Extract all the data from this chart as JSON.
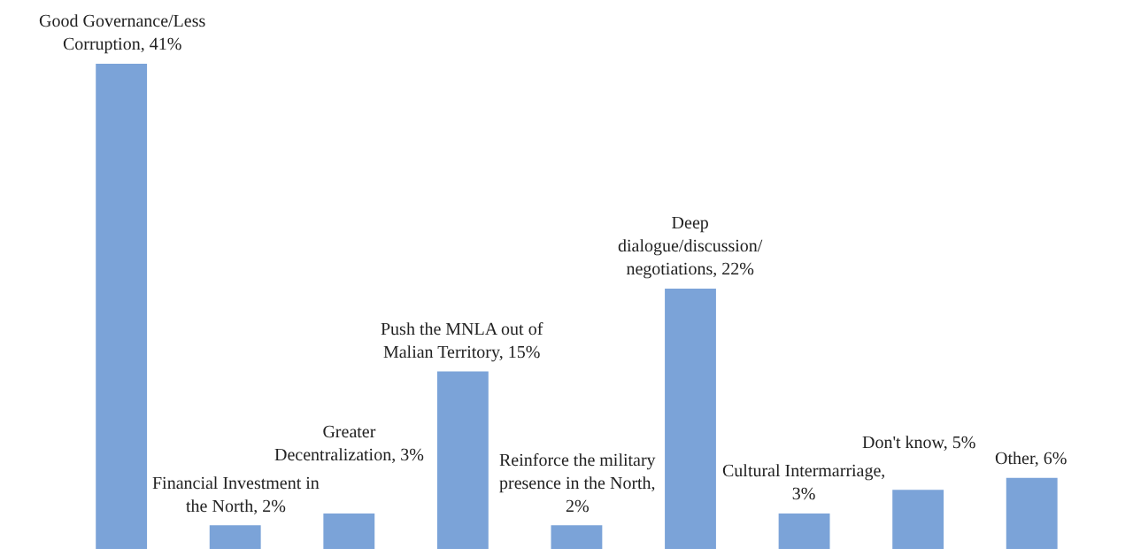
{
  "chart_data": {
    "type": "bar",
    "categories": [
      null,
      null,
      null,
      null,
      null,
      null,
      null,
      null,
      null
    ],
    "values": [
      41,
      2,
      3,
      15,
      2,
      22,
      3,
      5,
      6
    ],
    "color": "#7ba3d8",
    "value_labels": [
      "Good Governance/Less\nCorruption, 41%",
      "Financial Investment in\nthe North, 2%",
      "Greater\nDecentralization, 3%",
      "Push the MNLA out of\nMalian Territory, 15%",
      "Reinforce the military\npresence in the North,\n2%",
      "Deep\ndialogue/discussion/\nnegotiations, 22%",
      "Cultural Intermarriage,\n3%",
      "Don't know, 5%",
      "Other, 6%"
    ],
    "legend": false,
    "tick_labels": false
  }
}
